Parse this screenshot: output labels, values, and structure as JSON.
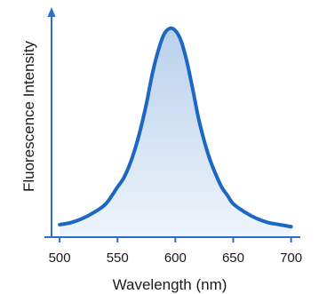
{
  "chart_data": {
    "type": "area",
    "title": "",
    "xlabel": "Wavelength (nm)",
    "ylabel": "Fluorescence Intensity",
    "xlim": [
      493,
      708
    ],
    "ylim": [
      0,
      1.06
    ],
    "xticks": [
      "500",
      "550",
      "600",
      "650",
      "700"
    ],
    "yticks": [],
    "grid": false,
    "legend": "none",
    "colors": {
      "line": "#1d67c4",
      "fill_top": "#b9d0ec",
      "fill_bottom": "#eef4fb",
      "axis": "#2a6fc4"
    },
    "series": [
      {
        "x": [
          500,
          510,
          520,
          530,
          540,
          550,
          555,
          560,
          565,
          570,
          575,
          580,
          585,
          590,
          595,
          600,
          605,
          610,
          615,
          620,
          625,
          630,
          635,
          640,
          645,
          650,
          660,
          670,
          680,
          690,
          700
        ],
        "y": [
          0.06,
          0.07,
          0.09,
          0.12,
          0.16,
          0.24,
          0.28,
          0.34,
          0.42,
          0.52,
          0.64,
          0.78,
          0.89,
          0.97,
          1.0,
          0.99,
          0.94,
          0.84,
          0.71,
          0.57,
          0.46,
          0.37,
          0.3,
          0.24,
          0.2,
          0.16,
          0.12,
          0.09,
          0.07,
          0.06,
          0.05
        ]
      }
    ]
  }
}
